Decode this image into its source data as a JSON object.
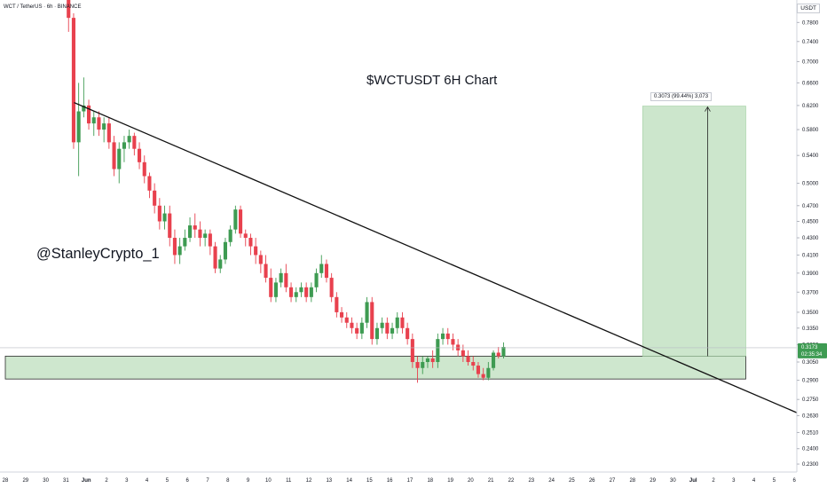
{
  "header": {
    "symbol_line": "WCT / TetherUS · 6h · BINANCE",
    "currency": "USDT"
  },
  "annotations": {
    "title": "$WCTUSDT 6H Chart",
    "author": "@StanleyCrypto_1",
    "measure_label": "0.3073 (99.44%) 3,073",
    "last_price": "0.3173",
    "countdown": "02:35:34"
  },
  "colors": {
    "up": "#3e9b52",
    "down": "#e8414e",
    "zone_fill": "#c6e3c6",
    "zone_border": "#2b2b2b",
    "trendline": "#111111"
  },
  "chart_data": {
    "type": "candlestick",
    "title": "$WCTUSDT 6H Chart",
    "y_axis": {
      "scale": "log",
      "ticks": [
        "0.7800",
        "0.7400",
        "0.7000",
        "0.6600",
        "0.6200",
        "0.5800",
        "0.5400",
        "0.5000",
        "0.4700",
        "0.4500",
        "0.4300",
        "0.4100",
        "0.3900",
        "0.3700",
        "0.3500",
        "0.3350",
        "0.3200",
        "0.3050",
        "0.2900",
        "0.2750",
        "0.2630",
        "0.2510",
        "0.2400",
        "0.2300"
      ],
      "ylim": [
        0.225,
        0.83
      ]
    },
    "x_axis": {
      "ticks": [
        "28",
        "29",
        "30",
        "31",
        "Jun",
        "2",
        "3",
        "4",
        "5",
        "6",
        "7",
        "8",
        "9",
        "10",
        "11",
        "12",
        "13",
        "14",
        "15",
        "16",
        "17",
        "18",
        "19",
        "20",
        "21",
        "22",
        "23",
        "24",
        "25",
        "26",
        "27",
        "28",
        "29",
        "30",
        "Jul",
        "2",
        "3",
        "4",
        "5",
        "6"
      ],
      "start_label_index": 0
    },
    "candle_start_day": 3,
    "candles_per_day": 4,
    "candles": [
      [
        0.85,
        0.85,
        0.76,
        0.79
      ],
      [
        0.79,
        0.8,
        0.55,
        0.56
      ],
      [
        0.56,
        0.66,
        0.51,
        0.61
      ],
      [
        0.61,
        0.67,
        0.6,
        0.62
      ],
      [
        0.62,
        0.63,
        0.58,
        0.59
      ],
      [
        0.59,
        0.61,
        0.57,
        0.6
      ],
      [
        0.6,
        0.61,
        0.57,
        0.58
      ],
      [
        0.58,
        0.6,
        0.56,
        0.59
      ],
      [
        0.59,
        0.6,
        0.55,
        0.56
      ],
      [
        0.56,
        0.57,
        0.51,
        0.52
      ],
      [
        0.52,
        0.56,
        0.5,
        0.55
      ],
      [
        0.55,
        0.57,
        0.53,
        0.56
      ],
      [
        0.56,
        0.58,
        0.55,
        0.57
      ],
      [
        0.57,
        0.575,
        0.54,
        0.55
      ],
      [
        0.55,
        0.56,
        0.52,
        0.53
      ],
      [
        0.53,
        0.54,
        0.5,
        0.51
      ],
      [
        0.51,
        0.515,
        0.48,
        0.49
      ],
      [
        0.49,
        0.5,
        0.46,
        0.47
      ],
      [
        0.47,
        0.48,
        0.44,
        0.45
      ],
      [
        0.45,
        0.47,
        0.44,
        0.46
      ],
      [
        0.46,
        0.47,
        0.42,
        0.43
      ],
      [
        0.43,
        0.44,
        0.4,
        0.41
      ],
      [
        0.41,
        0.43,
        0.4,
        0.42
      ],
      [
        0.42,
        0.44,
        0.415,
        0.43
      ],
      [
        0.43,
        0.455,
        0.425,
        0.445
      ],
      [
        0.445,
        0.46,
        0.43,
        0.44
      ],
      [
        0.44,
        0.45,
        0.42,
        0.43
      ],
      [
        0.43,
        0.44,
        0.42,
        0.435
      ],
      [
        0.435,
        0.44,
        0.41,
        0.42
      ],
      [
        0.42,
        0.425,
        0.39,
        0.395
      ],
      [
        0.395,
        0.41,
        0.39,
        0.405
      ],
      [
        0.405,
        0.43,
        0.4,
        0.425
      ],
      [
        0.425,
        0.445,
        0.42,
        0.44
      ],
      [
        0.44,
        0.47,
        0.435,
        0.465
      ],
      [
        0.465,
        0.47,
        0.43,
        0.435
      ],
      [
        0.435,
        0.44,
        0.42,
        0.43
      ],
      [
        0.43,
        0.435,
        0.41,
        0.42
      ],
      [
        0.42,
        0.43,
        0.4,
        0.41
      ],
      [
        0.41,
        0.415,
        0.39,
        0.4
      ],
      [
        0.4,
        0.41,
        0.38,
        0.385
      ],
      [
        0.385,
        0.395,
        0.36,
        0.365
      ],
      [
        0.365,
        0.385,
        0.36,
        0.38
      ],
      [
        0.38,
        0.395,
        0.375,
        0.39
      ],
      [
        0.39,
        0.4,
        0.37,
        0.375
      ],
      [
        0.375,
        0.38,
        0.36,
        0.365
      ],
      [
        0.365,
        0.375,
        0.36,
        0.37
      ],
      [
        0.37,
        0.38,
        0.365,
        0.375
      ],
      [
        0.375,
        0.38,
        0.36,
        0.365
      ],
      [
        0.365,
        0.38,
        0.36,
        0.375
      ],
      [
        0.375,
        0.395,
        0.37,
        0.39
      ],
      [
        0.39,
        0.41,
        0.385,
        0.4
      ],
      [
        0.4,
        0.405,
        0.38,
        0.385
      ],
      [
        0.385,
        0.39,
        0.36,
        0.365
      ],
      [
        0.365,
        0.37,
        0.345,
        0.35
      ],
      [
        0.35,
        0.355,
        0.34,
        0.345
      ],
      [
        0.345,
        0.35,
        0.335,
        0.34
      ],
      [
        0.34,
        0.345,
        0.33,
        0.335
      ],
      [
        0.335,
        0.34,
        0.325,
        0.33
      ],
      [
        0.33,
        0.345,
        0.325,
        0.34
      ],
      [
        0.34,
        0.365,
        0.335,
        0.36
      ],
      [
        0.36,
        0.365,
        0.32,
        0.325
      ],
      [
        0.325,
        0.34,
        0.32,
        0.335
      ],
      [
        0.335,
        0.345,
        0.33,
        0.34
      ],
      [
        0.34,
        0.345,
        0.325,
        0.33
      ],
      [
        0.33,
        0.34,
        0.325,
        0.335
      ],
      [
        0.335,
        0.35,
        0.33,
        0.345
      ],
      [
        0.345,
        0.35,
        0.33,
        0.335
      ],
      [
        0.335,
        0.34,
        0.32,
        0.325
      ],
      [
        0.325,
        0.33,
        0.3,
        0.305
      ],
      [
        0.305,
        0.31,
        0.288,
        0.3
      ],
      [
        0.3,
        0.31,
        0.295,
        0.305
      ],
      [
        0.305,
        0.31,
        0.3,
        0.308
      ],
      [
        0.308,
        0.315,
        0.3,
        0.305
      ],
      [
        0.305,
        0.33,
        0.3,
        0.325
      ],
      [
        0.325,
        0.335,
        0.32,
        0.33
      ],
      [
        0.33,
        0.335,
        0.32,
        0.325
      ],
      [
        0.325,
        0.33,
        0.315,
        0.32
      ],
      [
        0.32,
        0.325,
        0.31,
        0.315
      ],
      [
        0.315,
        0.32,
        0.305,
        0.31
      ],
      [
        0.31,
        0.315,
        0.302,
        0.305
      ],
      [
        0.305,
        0.31,
        0.298,
        0.302
      ],
      [
        0.302,
        0.305,
        0.292,
        0.295
      ],
      [
        0.295,
        0.3,
        0.29,
        0.292
      ],
      [
        0.292,
        0.305,
        0.29,
        0.3
      ],
      [
        0.3,
        0.315,
        0.298,
        0.313
      ],
      [
        0.313,
        0.318,
        0.308,
        0.31
      ],
      [
        0.31,
        0.322,
        0.308,
        0.318
      ]
    ],
    "trendline": {
      "from": [
        3.4,
        0.625
      ],
      "to": [
        39.3,
        0.264
      ]
    },
    "support_zone": {
      "top": 0.31,
      "bottom": 0.291,
      "x_from": 0,
      "x_to": 36.6
    },
    "target_box": {
      "x_from": 31.5,
      "x_to": 36.6,
      "bottom": 0.31,
      "top": 0.619
    },
    "last_price": 0.3173
  }
}
